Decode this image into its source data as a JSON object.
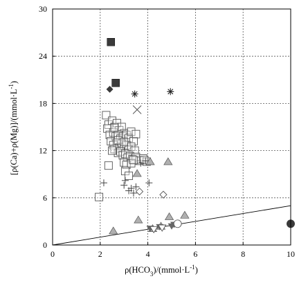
{
  "chart_data": {
    "type": "scatter",
    "xlabel": "ρ(HCO3)/(mmol·L-1)",
    "xlabel_parts": {
      "pre": "ρ(HCO",
      "sub": "3",
      "mid": ")/(mmol·L",
      "sup": "-1",
      "post": ")"
    },
    "ylabel": "[ρ(Ca)+ρ(Mg)]/(mmol·L-1)",
    "ylabel_parts": {
      "pre": "[ρ(Ca)+ρ(Mg)]/(mmol·L",
      "sup": "-1",
      "post": ")"
    },
    "xlim": [
      0,
      10
    ],
    "ylim": [
      0,
      30
    ],
    "x_ticks": [
      0,
      2,
      4,
      6,
      8,
      10
    ],
    "y_ticks": [
      0,
      6,
      12,
      18,
      24,
      30
    ],
    "x_tick_labels": [
      "0",
      "2",
      "4",
      "6",
      "8",
      "10"
    ],
    "y_tick_labels": [
      "0",
      "6",
      "12",
      "18",
      "24",
      "30"
    ],
    "grid": "dotted",
    "reference_line": {
      "x": [
        0,
        10
      ],
      "y": [
        0,
        5
      ]
    },
    "series": [
      {
        "marker": "filled-square",
        "color": "#3a3a3a",
        "points": [
          [
            2.45,
            25.8
          ],
          [
            2.65,
            20.6
          ]
        ]
      },
      {
        "marker": "filled-diamond",
        "color": "#3a3a3a",
        "points": [
          [
            2.4,
            19.8
          ]
        ]
      },
      {
        "marker": "asterisk",
        "color": "#222222",
        "points": [
          [
            3.45,
            19.2
          ],
          [
            4.95,
            19.5
          ]
        ]
      },
      {
        "marker": "x",
        "color": "#555555",
        "points": [
          [
            3.55,
            17.2
          ]
        ]
      },
      {
        "marker": "open-square",
        "color": "#555555",
        "points": [
          [
            2.25,
            16.5
          ],
          [
            2.35,
            15.3
          ],
          [
            2.5,
            15.8
          ],
          [
            2.6,
            15.0
          ],
          [
            2.7,
            15.5
          ],
          [
            2.8,
            14.6
          ],
          [
            2.9,
            15.0
          ],
          [
            3.0,
            14.2
          ],
          [
            2.3,
            14.8
          ],
          [
            2.4,
            14.0
          ],
          [
            2.55,
            14.3
          ],
          [
            2.65,
            13.8
          ],
          [
            2.75,
            14.0
          ],
          [
            2.85,
            13.5
          ],
          [
            2.95,
            13.8
          ],
          [
            3.1,
            14.0
          ],
          [
            3.2,
            13.6
          ],
          [
            3.3,
            14.4
          ],
          [
            3.4,
            13.2
          ],
          [
            3.5,
            14.1
          ],
          [
            2.45,
            13.2
          ],
          [
            2.55,
            12.7
          ],
          [
            2.7,
            13.0
          ],
          [
            2.8,
            12.4
          ],
          [
            2.9,
            12.9
          ],
          [
            3.0,
            12.3
          ],
          [
            3.1,
            12.7
          ],
          [
            3.2,
            12.1
          ],
          [
            3.3,
            12.5
          ],
          [
            3.45,
            12.0
          ],
          [
            2.6,
            12.2
          ],
          [
            2.75,
            11.7
          ],
          [
            2.85,
            11.9
          ],
          [
            2.95,
            11.4
          ],
          [
            3.05,
            11.6
          ],
          [
            3.15,
            11.1
          ],
          [
            3.25,
            11.3
          ],
          [
            3.35,
            10.9
          ],
          [
            3.5,
            11.2
          ],
          [
            3.65,
            10.7
          ],
          [
            3.8,
            11.0
          ],
          [
            3.95,
            10.6
          ],
          [
            3.0,
            10.5
          ],
          [
            3.1,
            10.2
          ],
          [
            3.3,
            10.4
          ],
          [
            2.35,
            10.1
          ],
          [
            3.05,
            9.4
          ],
          [
            3.2,
            8.8
          ],
          [
            1.95,
            6.1
          ],
          [
            3.85,
            10.8
          ],
          [
            2.6,
            14.9
          ],
          [
            2.75,
            13.3
          ],
          [
            3.0,
            13.1
          ],
          [
            2.5,
            12.0
          ],
          [
            3.4,
            10.8
          ]
        ]
      },
      {
        "marker": "plus",
        "color": "#444444",
        "points": [
          [
            2.15,
            7.9
          ],
          [
            3.0,
            7.6
          ],
          [
            3.3,
            7.2
          ],
          [
            3.2,
            6.9
          ],
          [
            3.5,
            7.4
          ],
          [
            3.05,
            8.2
          ],
          [
            4.05,
            7.9
          ],
          [
            3.4,
            6.6
          ],
          [
            3.9,
            10.7
          ],
          [
            3.7,
            10.4
          ]
        ]
      },
      {
        "marker": "open-diamond",
        "color": "#555555",
        "points": [
          [
            3.65,
            6.8
          ],
          [
            4.65,
            6.4
          ]
        ]
      },
      {
        "marker": "gray-triangle",
        "color": "#b0b0b0",
        "points": [
          [
            4.1,
            10.6
          ],
          [
            4.85,
            10.6
          ],
          [
            3.55,
            9.1
          ],
          [
            3.6,
            3.2
          ],
          [
            2.55,
            1.8
          ],
          [
            4.9,
            3.6
          ],
          [
            5.55,
            3.8
          ],
          [
            4.55,
            2.4
          ],
          [
            4.2,
            2.1
          ]
        ]
      },
      {
        "marker": "filled-down-triangle",
        "color": "#666666",
        "points": [
          [
            4.5,
            2.3
          ],
          [
            5.1,
            2.6
          ],
          [
            4.1,
            2.1
          ],
          [
            5.0,
            2.4
          ]
        ]
      },
      {
        "marker": "open-down-triangle",
        "color": "#555555",
        "points": [
          [
            4.25,
            2.0
          ],
          [
            4.6,
            2.2
          ]
        ]
      },
      {
        "marker": "open-circle",
        "color": "#555555",
        "points": [
          [
            5.25,
            2.7
          ]
        ]
      },
      {
        "marker": "filled-circle",
        "color": "#3a3a3a",
        "points": [
          [
            10.0,
            2.7
          ]
        ]
      }
    ]
  }
}
